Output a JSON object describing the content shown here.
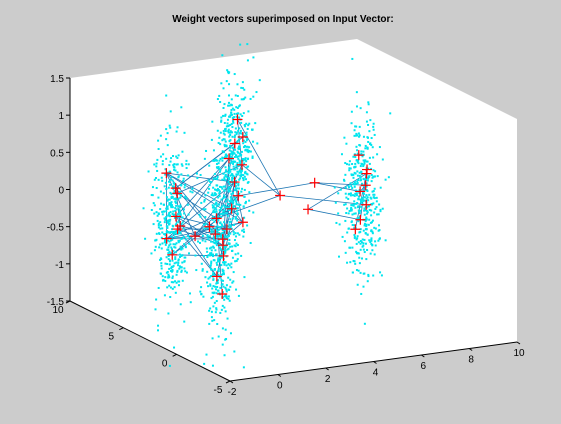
{
  "chart_data": {
    "type": "scatter",
    "title": "Weight vectors superimposed on Input Vector:",
    "xlabel": "",
    "ylabel": "",
    "zlabel": "",
    "xlim": [
      -2,
      10
    ],
    "ylim": [
      -5,
      10
    ],
    "zlim": [
      -1.5,
      1.5
    ],
    "x_ticks": [
      "-2",
      "0",
      "2",
      "4",
      "6",
      "8",
      "10"
    ],
    "y_ticks": [
      "-5",
      "0",
      "5",
      "10"
    ],
    "z_ticks": [
      "-1.5",
      "-1",
      "-0.5",
      "0",
      "0.5",
      "1",
      "1.5"
    ],
    "grid": false,
    "view": "3d",
    "colors": {
      "background": "#cccccc",
      "axes": "#ffffff",
      "input": "#00e5ee",
      "weights": "#ff0000",
      "connections": "#1f77b4"
    },
    "series": [
      {
        "role": "input vectors (cyan dots)",
        "clusters": [
          {
            "center": [
              0,
              5,
              -0.2
            ],
            "spread": [
              0.35,
              0.35,
              0.55
            ]
          },
          {
            "center": [
              2,
              5,
              -0.6
            ],
            "spread": [
              0.35,
              0.35,
              0.55
            ]
          },
          {
            "center": [
              4,
              8,
              0.3
            ],
            "spread": [
              0.35,
              0.35,
              0.55
            ]
          },
          {
            "center": [
              8,
              5,
              -0.2
            ],
            "spread": [
              0.35,
              0.35,
              0.55
            ]
          }
        ],
        "points_per_cluster": 420
      },
      {
        "role": "weight vectors (red crosses)",
        "points": [
          [
            0.2,
            5,
            -0.1
          ],
          [
            0.1,
            4.8,
            0.3
          ],
          [
            -0.1,
            5.2,
            -0.4
          ],
          [
            0.3,
            5.1,
            0.2
          ],
          [
            0.0,
            4.9,
            -0.6
          ],
          [
            0.4,
            5.3,
            -0.3
          ],
          [
            0.2,
            4.6,
            -0.2
          ],
          [
            -0.2,
            5.0,
            0.5
          ],
          [
            1.9,
            5.0,
            -0.2
          ],
          [
            2.1,
            4.8,
            -0.7
          ],
          [
            2.0,
            5.2,
            -1.0
          ],
          [
            1.8,
            4.9,
            -0.4
          ],
          [
            2.2,
            5.1,
            -0.5
          ],
          [
            2.0,
            4.7,
            -1.2
          ],
          [
            1.6,
            5.0,
            -0.3
          ],
          [
            2.3,
            5.3,
            -0.6
          ],
          [
            4.0,
            8.0,
            0.5
          ],
          [
            3.9,
            7.8,
            0.0
          ],
          [
            4.2,
            8.2,
            0.8
          ],
          [
            4.1,
            7.9,
            -0.2
          ],
          [
            3.8,
            8.1,
            0.3
          ],
          [
            4.2,
            7.7,
            0.6
          ],
          [
            4.0,
            8.3,
            -0.4
          ],
          [
            4.3,
            8.0,
            0.2
          ],
          [
            7.9,
            5.0,
            -0.1
          ],
          [
            8.1,
            4.8,
            0.2
          ],
          [
            8.0,
            5.2,
            -0.5
          ],
          [
            7.8,
            4.9,
            0.4
          ],
          [
            8.2,
            5.1,
            -0.3
          ],
          [
            8.0,
            4.7,
            0.0
          ],
          [
            7.7,
            5.0,
            -0.6
          ],
          [
            8.3,
            5.3,
            0.1
          ],
          [
            3.0,
            5.0,
            -0.3
          ],
          [
            5.0,
            6.0,
            -0.1
          ],
          [
            6.0,
            5.0,
            0.1
          ],
          [
            3.0,
            6.5,
            -0.5
          ],
          [
            5.5,
            4.5,
            -0.2
          ],
          [
            1.0,
            5.0,
            -0.4
          ]
        ]
      }
    ]
  }
}
